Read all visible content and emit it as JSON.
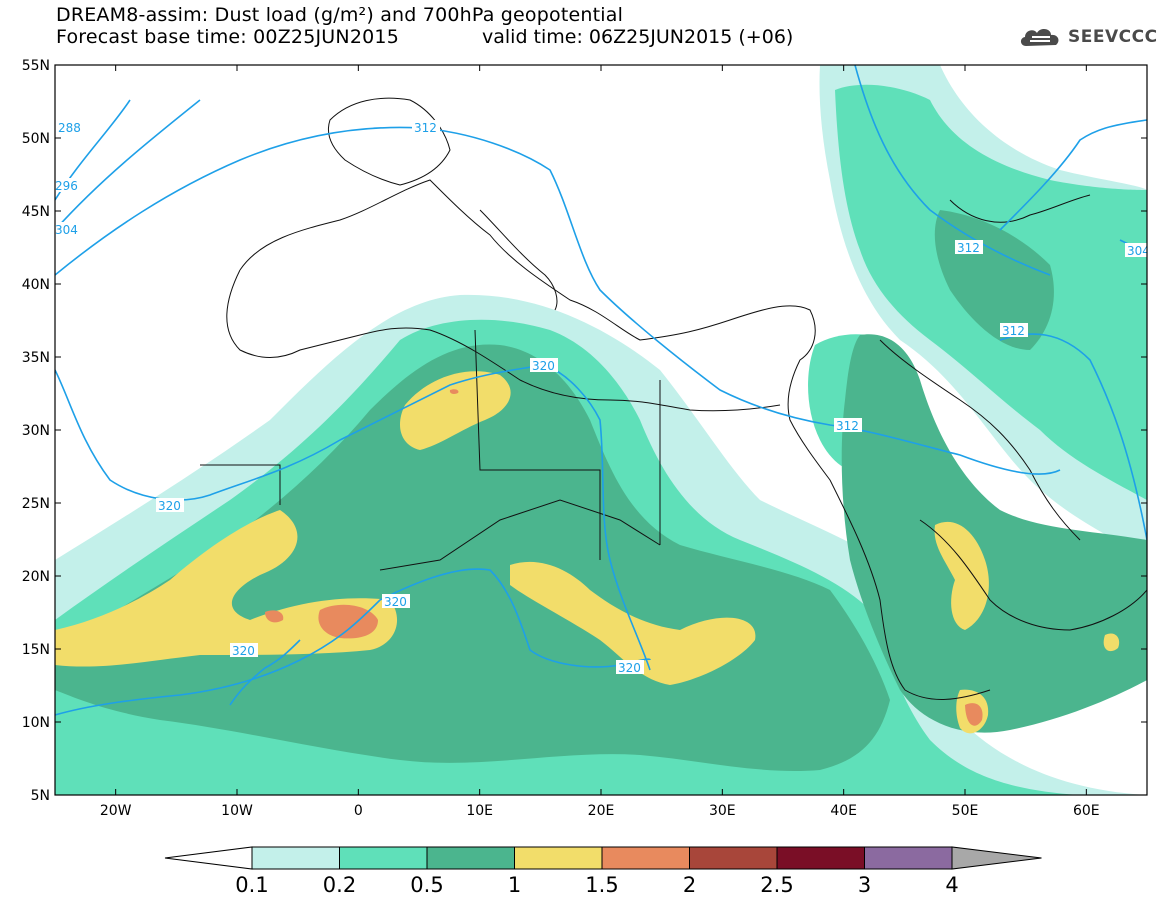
{
  "header": {
    "title": "DREAM8-assim: Dust load (g/m²) and 700hPa geopotential",
    "base_time": "Forecast base time: 00Z25JUN2015",
    "valid_time": "valid time: 06Z25JUN2015 (+06)"
  },
  "logo": {
    "icon": "cloud-icon",
    "text": "SEEVCCC"
  },
  "map": {
    "lon_range": [
      -25,
      65
    ],
    "lat_range": [
      5,
      55
    ],
    "x_ticks": [
      "20W",
      "10W",
      "0",
      "10E",
      "20E",
      "30E",
      "40E",
      "50E",
      "60E"
    ],
    "y_ticks": [
      "55N",
      "50N",
      "45N",
      "40N",
      "35N",
      "30N",
      "25N",
      "20N",
      "15N",
      "10N",
      "5N"
    ]
  },
  "contours": {
    "line_color": "#1ea0e8",
    "labels": [
      "288",
      "296",
      "304",
      "312",
      "312",
      "312",
      "312",
      "320",
      "320",
      "320",
      "320",
      "320",
      "304"
    ]
  },
  "colorbar": {
    "labels": [
      "0.1",
      "0.2",
      "0.5",
      "1",
      "1.5",
      "2",
      "2.5",
      "3",
      "4"
    ],
    "colors": [
      "#c3f0ea",
      "#5fe0b9",
      "#4bb58e",
      "#f2dd6a",
      "#e88a5e",
      "#a8463a",
      "#7a0e26",
      "#8b6aa0",
      "#a8a8a8"
    ]
  }
}
